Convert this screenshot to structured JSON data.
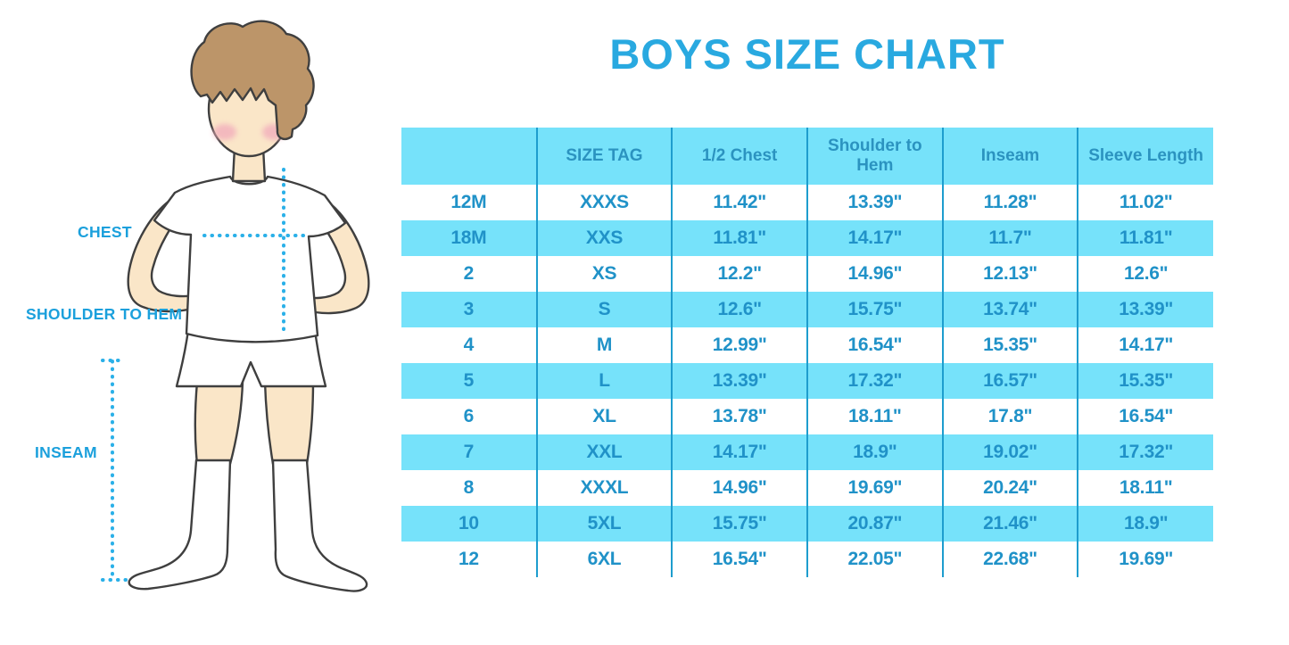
{
  "page": {
    "title": "BOYS SIZE CHART"
  },
  "figure": {
    "description": "cartoon boy wearing white t-shirt, shorts and knee socks with dotted measurement guides",
    "labels": {
      "chest": "CHEST",
      "shoulder_to_hem": "SHOULDER TO HEM",
      "inseam": "INSEAM"
    }
  },
  "chart_data": {
    "type": "table",
    "title": "BOYS SIZE CHART",
    "columns": [
      "",
      "SIZE TAG",
      "1/2 Chest",
      "Shoulder to Hem",
      "Inseam",
      "Sleeve Length"
    ],
    "rows": [
      [
        "12M",
        "XXXS",
        "11.42\"",
        "13.39\"",
        "11.28\"",
        "11.02\""
      ],
      [
        "18M",
        "XXS",
        "11.81\"",
        "14.17\"",
        "11.7\"",
        "11.81\""
      ],
      [
        "2",
        "XS",
        "12.2\"",
        "14.96\"",
        "12.13\"",
        "12.6\""
      ],
      [
        "3",
        "S",
        "12.6\"",
        "15.75\"",
        "13.74\"",
        "13.39\""
      ],
      [
        "4",
        "M",
        "12.99\"",
        "16.54\"",
        "15.35\"",
        "14.17\""
      ],
      [
        "5",
        "L",
        "13.39\"",
        "17.32\"",
        "16.57\"",
        "15.35\""
      ],
      [
        "6",
        "XL",
        "13.78\"",
        "18.11\"",
        "17.8\"",
        "16.54\""
      ],
      [
        "7",
        "XXL",
        "14.17\"",
        "18.9\"",
        "19.02\"",
        "17.32\""
      ],
      [
        "8",
        "XXXL",
        "14.96\"",
        "19.69\"",
        "20.24\"",
        "18.11\""
      ],
      [
        "10",
        "5XL",
        "15.75\"",
        "20.87\"",
        "21.46\"",
        "18.9\""
      ],
      [
        "12",
        "6XL",
        "16.54\"",
        "22.05\"",
        "22.68\"",
        "19.69\""
      ]
    ],
    "layout_hints": "header row and alternating data rows (18M, 3, 5, 7, 10) shaded light blue; vertical cyan dividers between columns; no outer border"
  },
  "colors": {
    "title_text": "#29a9e0",
    "table_text": "#2092c8",
    "header_text": "#2b93c0",
    "row_highlight": "#76e2fa",
    "column_divider": "#1e9dce",
    "measure_label_text": "#1ba0dc",
    "dotted_line": "#2ab0e8",
    "skin": "#fae6c8",
    "hair": "#bc9569",
    "cheek": "#f2aebc",
    "figure_outline": "#3f3f3f"
  }
}
